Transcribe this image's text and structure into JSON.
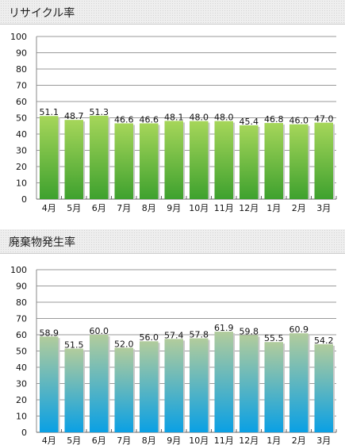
{
  "chart_data": [
    {
      "type": "bar",
      "title": "リサイクル率",
      "categories": [
        "4月",
        "5月",
        "6月",
        "7月",
        "8月",
        "9月",
        "10月",
        "11月",
        "12月",
        "1月",
        "2月",
        "3月"
      ],
      "values": [
        51.1,
        48.7,
        51.3,
        46.6,
        46.6,
        48.1,
        48.0,
        48.0,
        45.4,
        46.8,
        46.0,
        47.0
      ],
      "value_labels": [
        "51.1",
        "48.7",
        "51.3",
        "46.6",
        "46.6",
        "48.1",
        "48.0",
        "48.0",
        "45.4",
        "46.8",
        "46.0",
        "47.0"
      ],
      "xlabel": "",
      "ylabel": "",
      "ylim": [
        0,
        100
      ],
      "yticks": [
        "0",
        "10",
        "20",
        "30",
        "40",
        "50",
        "60",
        "70",
        "80",
        "90",
        "100"
      ],
      "grid": true,
      "colors": {
        "bar_top": "#a6d65a",
        "bar_bottom": "#3ea12e"
      }
    },
    {
      "type": "bar",
      "title": "廃棄物発生率",
      "categories": [
        "4月",
        "5月",
        "6月",
        "7月",
        "8月",
        "9月",
        "10月",
        "11月",
        "12月",
        "1月",
        "2月",
        "3月"
      ],
      "values": [
        58.9,
        51.5,
        60.0,
        52.0,
        56.0,
        57.4,
        57.8,
        61.9,
        59.8,
        55.5,
        60.9,
        54.2
      ],
      "value_labels": [
        "58.9",
        "51.5",
        "60.0",
        "52.0",
        "56.0",
        "57.4",
        "57.8",
        "61.9",
        "59.8",
        "55.5",
        "60.9",
        "54.2"
      ],
      "xlabel": "",
      "ylabel": "",
      "ylim": [
        0,
        100
      ],
      "yticks": [
        "0",
        "10",
        "20",
        "30",
        "40",
        "50",
        "60",
        "70",
        "80",
        "90",
        "100"
      ],
      "grid": true,
      "colors": {
        "bar_top": "#b2cc9c",
        "bar_bottom": "#0aa0e4"
      }
    }
  ]
}
